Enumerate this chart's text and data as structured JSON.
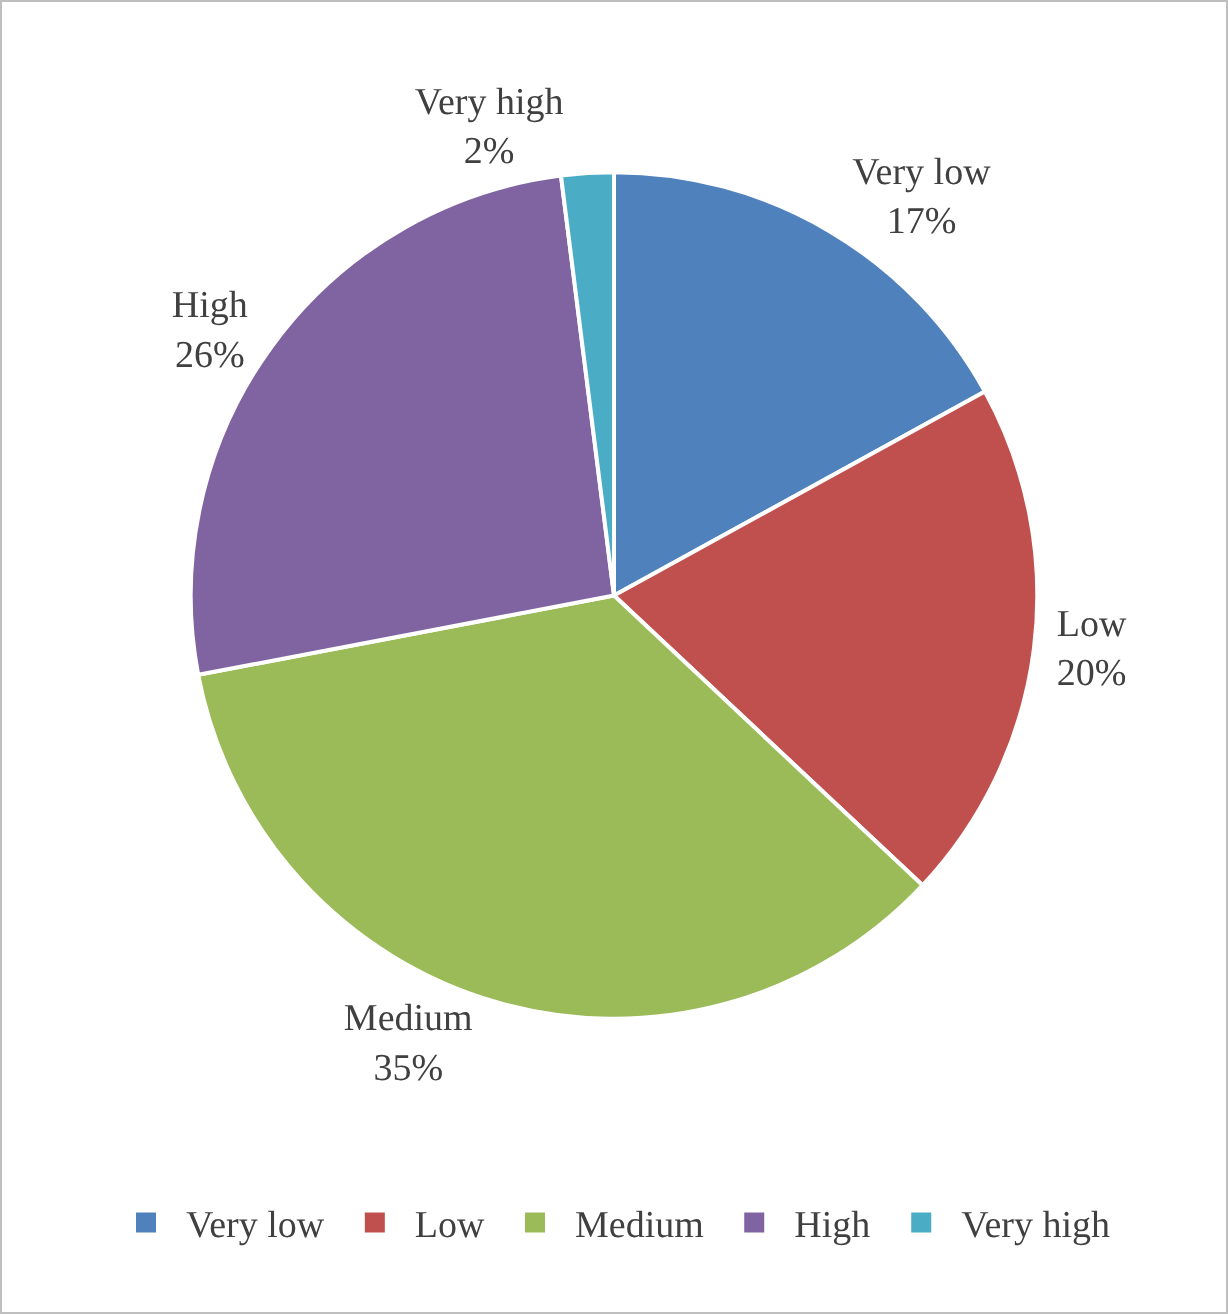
{
  "chart_data": {
    "type": "pie",
    "categories": [
      "Very low",
      "Low",
      "Medium",
      "High",
      "Very high"
    ],
    "values": [
      17,
      20,
      35,
      26,
      2
    ],
    "value_labels": [
      "17%",
      "20%",
      "35%",
      "26%",
      "2%"
    ],
    "colors": [
      "#4f81bd",
      "#c0504d",
      "#9bbb59",
      "#8064a2",
      "#4bacc6"
    ],
    "legend": "bottom"
  }
}
